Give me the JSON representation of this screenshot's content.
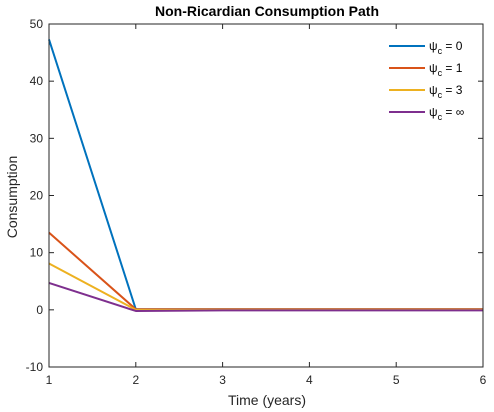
{
  "chart_data": {
    "type": "line",
    "title": "Non-Ricardian Consumption Path",
    "xlabel": "Time (years)",
    "ylabel": "Consumption",
    "xlim": [
      1,
      6
    ],
    "ylim": [
      -10,
      50
    ],
    "xticks": [
      1,
      2,
      3,
      4,
      5,
      6
    ],
    "yticks": [
      -10,
      0,
      10,
      20,
      30,
      40,
      50
    ],
    "grid": false,
    "legend_position": "top-right",
    "x": [
      1,
      2,
      3,
      4,
      5,
      6
    ],
    "series": [
      {
        "name": "ψ_c = 0",
        "legend_symbol": "ψ",
        "legend_sub": "c",
        "legend_rhs": " = 0",
        "color": "#0072BD",
        "values": [
          47.3,
          0.1,
          0.1,
          0.1,
          0.1,
          0.1
        ]
      },
      {
        "name": "ψ_c = 1",
        "legend_symbol": "ψ",
        "legend_sub": "c",
        "legend_rhs": " = 1",
        "color": "#D95319",
        "values": [
          13.5,
          0.1,
          0.1,
          0.1,
          0.1,
          0.1
        ]
      },
      {
        "name": "ψ_c = 3",
        "legend_symbol": "ψ",
        "legend_sub": "c",
        "legend_rhs": " = 3",
        "color": "#EDB120",
        "values": [
          8.1,
          0.0,
          0.0,
          0.0,
          0.0,
          0.0
        ]
      },
      {
        "name": "ψ_c = ∞",
        "legend_symbol": "ψ",
        "legend_sub": "c",
        "legend_rhs": " = ∞",
        "color": "#7E2F8E",
        "values": [
          4.7,
          -0.2,
          -0.1,
          -0.1,
          -0.1,
          -0.1
        ]
      }
    ]
  }
}
